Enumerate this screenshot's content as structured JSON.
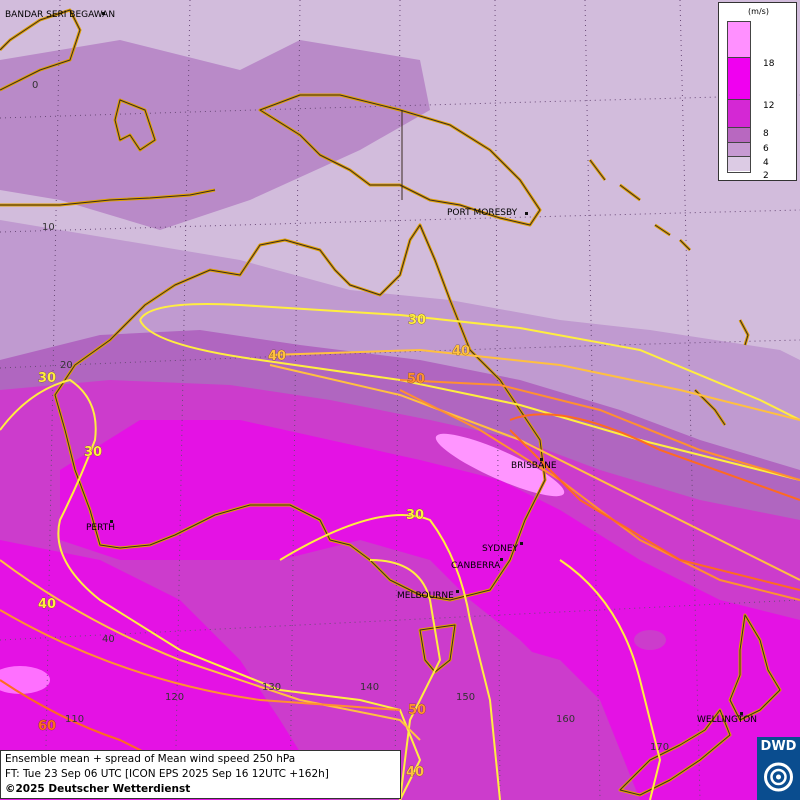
{
  "map": {
    "cities": [
      {
        "name": "BANDAR SERI BEGAWAN"
      },
      {
        "name": "PORT MORESBY"
      },
      {
        "name": "BRISBANE"
      },
      {
        "name": "SYDNEY"
      },
      {
        "name": "CANBERRA"
      },
      {
        "name": "MELBOURNE"
      },
      {
        "name": "PERTH"
      },
      {
        "name": "WELLINGTON"
      }
    ],
    "lat_labels": [
      "0",
      "10",
      "20",
      "40"
    ],
    "lon_labels": [
      "110",
      "120",
      "130",
      "140",
      "150",
      "160",
      "170"
    ],
    "isotach_labels": [
      "30",
      "40",
      "50",
      "30",
      "40",
      "30",
      "30",
      "30",
      "40",
      "40",
      "50",
      "60",
      "40"
    ],
    "isotach_colors": {
      "30": "#ffee40",
      "40": "#ffc040",
      "50": "#ff9030",
      "60": "#ff6a20"
    }
  },
  "legend": {
    "unit": "(m/s)",
    "ticks": [
      "18",
      "12",
      "8",
      "6",
      "4",
      "2"
    ],
    "colors": [
      "#ff90ff",
      "#f000f0",
      "#d428d4",
      "#b868c0",
      "#c79ad2",
      "#dccbe4",
      "#ffffff"
    ]
  },
  "info": {
    "line1": "Ensemble mean + spread of Mean wind speed 250 hPa",
    "line2": "FT: Tue 23 Sep 06 UTC [ICON EPS 2025 Sep 16 12UTC +162h]",
    "line3": "©2025 Deutscher Wetterdienst"
  },
  "logo": {
    "text": "DWD"
  }
}
